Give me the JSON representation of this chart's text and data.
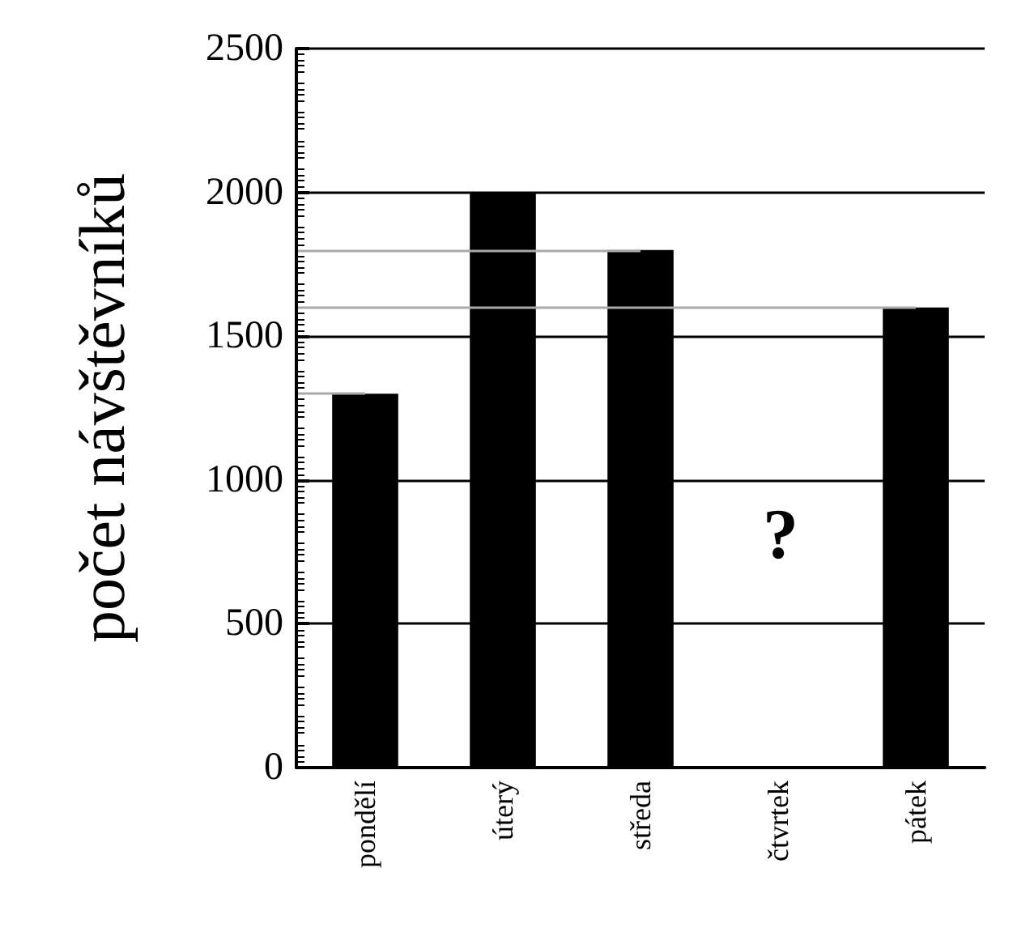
{
  "chart_data": {
    "type": "bar",
    "ylabel": "počet návštěvníků",
    "categories": [
      "pondělí",
      "úterý",
      "středa",
      "čtvrtek",
      "pátek"
    ],
    "values": [
      1300,
      2000,
      1800,
      null,
      1600
    ],
    "color": "#000000",
    "ylim": [
      0,
      2500
    ],
    "yticks": [
      0,
      500,
      1000,
      1500,
      2000,
      2500
    ],
    "grid": "y",
    "ref_lines": [
      {
        "axis": "y",
        "value": 1800,
        "color": "#aaaaaa"
      },
      {
        "axis": "y",
        "value": 1600,
        "color": "#aaaaaa"
      },
      {
        "axis": "y",
        "value": 1300,
        "color": "#aaaaaa"
      }
    ],
    "annotations": [
      "?"
    ]
  }
}
